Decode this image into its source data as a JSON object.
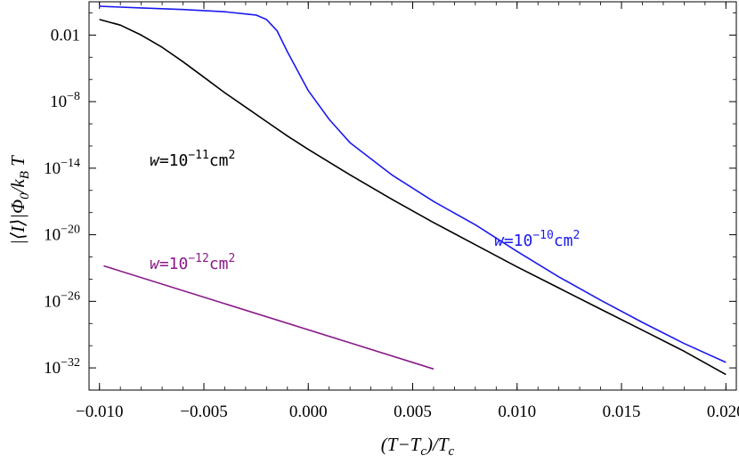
{
  "chart_data": {
    "type": "line",
    "xlabel": "(T−T_c)/T_c",
    "ylabel": "|⟨I⟩|Φ_0/k_B T",
    "xlim": [
      -0.0105,
      0.0205
    ],
    "ylim": [
      -34,
      1
    ],
    "y_scale": "log10",
    "grid": false,
    "x_ticks": [
      -0.01,
      -0.005,
      0.0,
      0.005,
      0.01,
      0.015,
      0.02
    ],
    "x_tick_labels": [
      "−0.010",
      "−0.005",
      "0.000",
      "0.005",
      "0.010",
      "0.015",
      "0.020"
    ],
    "y_ticks_log10": [
      -32,
      -26,
      -20,
      -14,
      -8,
      -2
    ],
    "y_tick_labels": [
      {
        "base": "10",
        "exp": "−32"
      },
      {
        "base": "10",
        "exp": "−26"
      },
      {
        "base": "10",
        "exp": "−20"
      },
      {
        "base": "10",
        "exp": "−14"
      },
      {
        "base": "10",
        "exp": "−8"
      },
      {
        "base": "0.01",
        "exp": ""
      }
    ],
    "series": [
      {
        "name": "w=10^-10 cm^2",
        "label_parts": {
          "pre": "w=10",
          "exp1": "−10",
          "mid": "cm",
          "exp2": "2"
        },
        "color": "#1a1aee",
        "x": [
          -0.01,
          -0.008,
          -0.006,
          -0.004,
          -0.003,
          -0.0025,
          -0.002,
          -0.0015,
          -0.001,
          0.0,
          0.001,
          0.002,
          0.004,
          0.006,
          0.008,
          0.01,
          0.012,
          0.014,
          0.016,
          0.018,
          0.02
        ],
        "log10_y": [
          0.6,
          0.45,
          0.3,
          0.1,
          -0.1,
          -0.2,
          -0.6,
          -1.6,
          -3.5,
          -7.0,
          -9.6,
          -11.7,
          -14.6,
          -17.0,
          -19.1,
          -21.5,
          -23.8,
          -25.9,
          -27.9,
          -29.8,
          -31.5
        ]
      },
      {
        "name": "w=10^-11 cm^2",
        "label_parts": {
          "pre": "w=10",
          "exp1": "−11",
          "mid": "cm",
          "exp2": "2"
        },
        "color": "#000000",
        "x": [
          -0.01,
          -0.009,
          -0.008,
          -0.007,
          -0.006,
          -0.005,
          -0.004,
          -0.003,
          -0.002,
          -0.001,
          0.0,
          0.002,
          0.004,
          0.006,
          0.008,
          0.01,
          0.012,
          0.014,
          0.016,
          0.018,
          0.02
        ],
        "log10_y": [
          -0.6,
          -1.1,
          -2.0,
          -3.1,
          -4.4,
          -5.8,
          -7.2,
          -8.5,
          -9.8,
          -11.1,
          -12.3,
          -14.6,
          -16.8,
          -18.9,
          -20.9,
          -22.9,
          -24.8,
          -26.7,
          -28.6,
          -30.5,
          -32.6
        ]
      },
      {
        "name": "w=10^-12 cm^2",
        "label_parts": {
          "pre": "w=10",
          "exp1": "−12",
          "mid": "cm",
          "exp2": "2"
        },
        "color": "#8a1a8a",
        "x": [
          -0.0098,
          0.006
        ],
        "log10_y": [
          -22.8,
          -32.1
        ]
      }
    ]
  }
}
